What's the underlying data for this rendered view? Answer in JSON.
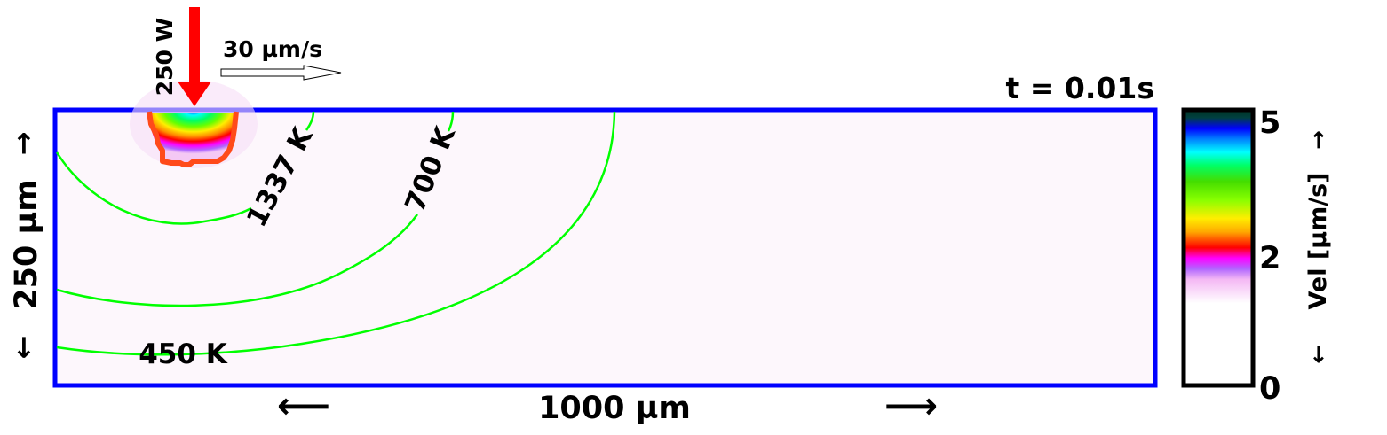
{
  "time_label": "t = 0.01s",
  "laser": {
    "power_label": "250 W",
    "color": "#ff0000"
  },
  "scan": {
    "speed_label": "30 µm/s"
  },
  "domain": {
    "width_label": "1000 µm",
    "height_label": "250 µm",
    "border_color": "#0000ff",
    "background_color": "#fdf7fc",
    "left_arrow": "⟵",
    "right_arrow": "⟶",
    "up_arrow": "→",
    "down_arrow": "←"
  },
  "isotherms": {
    "color": "#00ff00",
    "labels": [
      "1337 K",
      "700 K",
      "450 K"
    ]
  },
  "melt_pool": {
    "outline_color": "#ff4a1a"
  },
  "colorbar": {
    "label": "Vel [µm/s]",
    "up_arrow": "→",
    "down_arrow": "←",
    "ticks": [
      "5",
      "2",
      "0"
    ],
    "range": [
      0,
      5.2
    ],
    "stops": [
      {
        "value": 0,
        "color": "#ffffff"
      },
      {
        "value": 1.55,
        "color": "#ffffff"
      },
      {
        "value": 2.0,
        "color": "#f4b8f4"
      },
      {
        "value": 2.2,
        "color": "#b066ff"
      },
      {
        "value": 2.4,
        "color": "#ff00ff"
      },
      {
        "value": 2.6,
        "color": "#ff0000"
      },
      {
        "value": 2.9,
        "color": "#ffaa00"
      },
      {
        "value": 3.15,
        "color": "#ffee00"
      },
      {
        "value": 3.5,
        "color": "#88ff00"
      },
      {
        "value": 3.85,
        "color": "#44dd00"
      },
      {
        "value": 4.15,
        "color": "#00ff66"
      },
      {
        "value": 4.4,
        "color": "#00ffff"
      },
      {
        "value": 4.65,
        "color": "#0080ff"
      },
      {
        "value": 4.85,
        "color": "#0000ff"
      },
      {
        "value": 5.05,
        "color": "#004040"
      },
      {
        "value": 5.2,
        "color": "#003322"
      }
    ]
  }
}
